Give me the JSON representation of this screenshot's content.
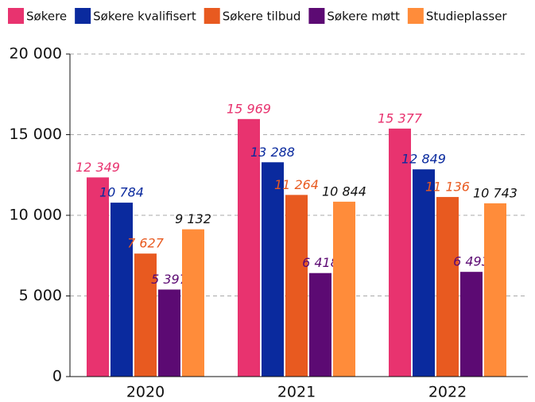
{
  "chart_data": {
    "type": "bar",
    "categories": [
      "2020",
      "2021",
      "2022"
    ],
    "series": [
      {
        "name": "Søkere",
        "color": "#e8336f",
        "label_color": "#e8336f",
        "values": [
          12349,
          15969,
          15377
        ],
        "value_labels": [
          "12 349",
          "15 969",
          "15 377"
        ]
      },
      {
        "name": "Søkere kvalifisert",
        "color": "#0a2a9e",
        "label_color": "#0a2a9e",
        "values": [
          10784,
          13288,
          12849
        ],
        "value_labels": [
          "10 784",
          "13 288",
          "12 849"
        ]
      },
      {
        "name": "Søkere tilbud",
        "color": "#e85a20",
        "label_color": "#e85a20",
        "values": [
          7627,
          11264,
          11136
        ],
        "value_labels": [
          "7 627",
          "11 264",
          "11 136"
        ]
      },
      {
        "name": "Søkere møtt",
        "color": "#5c0a73",
        "label_color": "#5c0a73",
        "values": [
          5397,
          6418,
          6493
        ],
        "value_labels": [
          "5 397",
          "6 418",
          "6 493"
        ]
      },
      {
        "name": "Studieplasser",
        "color": "#ff8c3a",
        "label_color": "#111111",
        "values": [
          9132,
          10844,
          10743
        ],
        "value_labels": [
          "9 132",
          "10 844",
          "10 743"
        ]
      }
    ],
    "ylim": [
      0,
      20000
    ],
    "yticks": [
      0,
      {
        "value": 5000,
        "label": "5 000"
      },
      {
        "value": 10000,
        "label": "10 000"
      },
      {
        "value": 15000,
        "label": "15 000"
      },
      {
        "value": 20000,
        "label": "20 000"
      }
    ],
    "grid": true,
    "legend": "top"
  }
}
